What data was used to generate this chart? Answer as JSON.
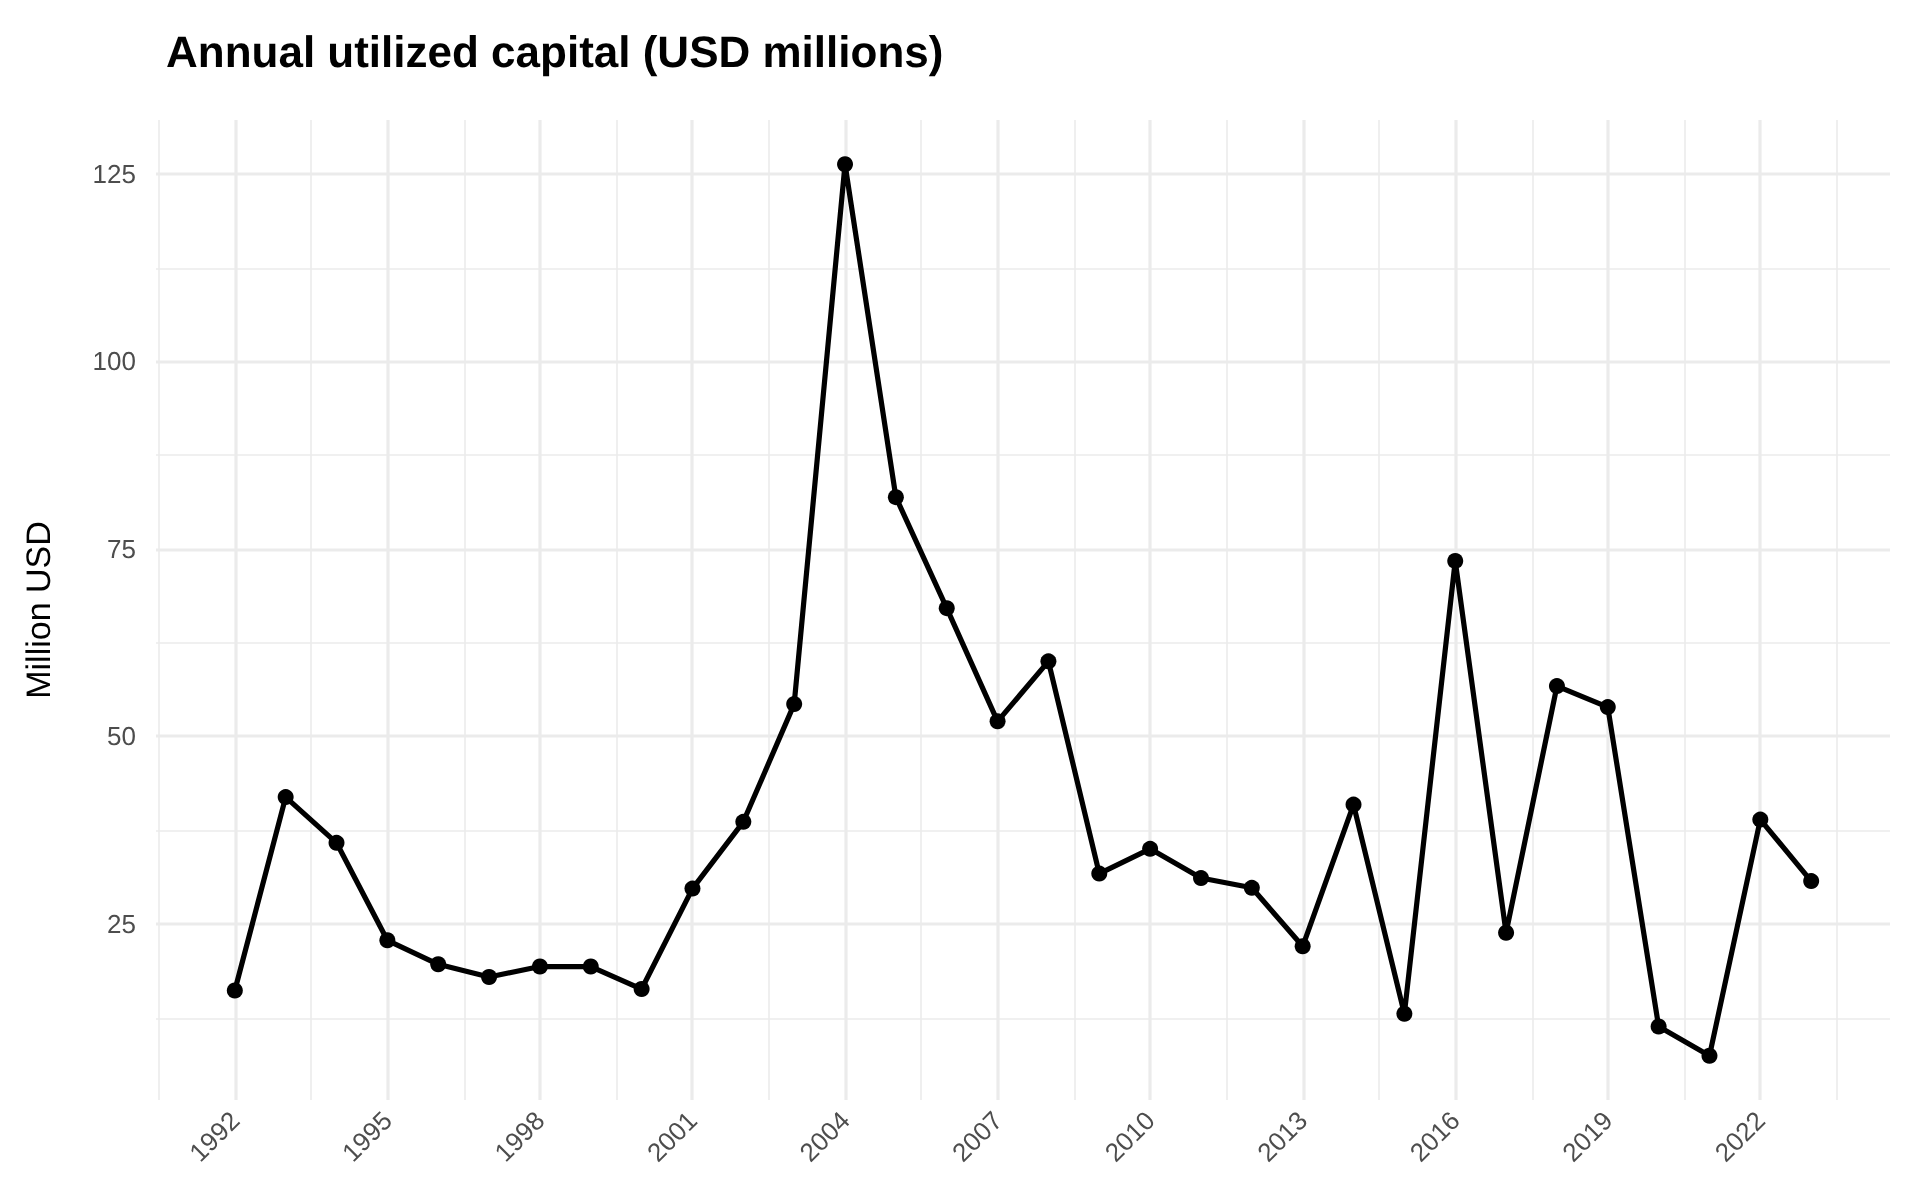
{
  "chart_data": {
    "type": "line",
    "title": "Annual utilized capital (USD millions)",
    "ylabel": "Million USD",
    "x": [
      1992,
      1993,
      1994,
      1995,
      1996,
      1997,
      1998,
      1999,
      2000,
      2001,
      2002,
      2003,
      2004,
      2005,
      2006,
      2007,
      2008,
      2009,
      2010,
      2011,
      2012,
      2013,
      2014,
      2015,
      2016,
      2017,
      2018,
      2019,
      2020,
      2021,
      2022,
      2023
    ],
    "series": [
      {
        "color": "#000000",
        "values": [
          16.1,
          41.9,
          35.8,
          22.8,
          19.6,
          17.9,
          19.3,
          19.3,
          16.3,
          29.7,
          38.6,
          54.3,
          126.3,
          81.9,
          67.1,
          52.0,
          60.0,
          31.7,
          35.0,
          31.1,
          29.8,
          22.0,
          40.9,
          13.0,
          73.4,
          23.8,
          56.7,
          53.9,
          11.3,
          7.4,
          38.9,
          30.7
        ]
      }
    ],
    "xlim": [
      1990.45,
      2024.55
    ],
    "xticks": [
      1992,
      1995,
      1998,
      2001,
      2004,
      2007,
      2010,
      2013,
      2016,
      2019,
      2022
    ],
    "ylim": [
      1.5,
      132.2
    ],
    "yticks": [
      25,
      50,
      75,
      100,
      125
    ],
    "grid": true,
    "marker": "circle",
    "line_style": "solid"
  }
}
